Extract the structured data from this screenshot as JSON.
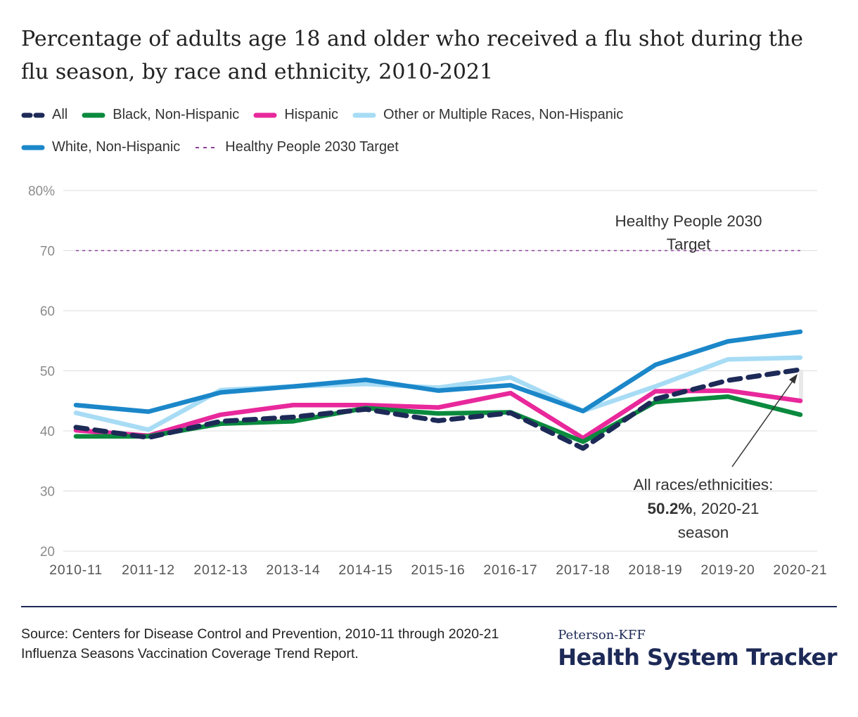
{
  "chart_data": {
    "type": "line",
    "title": "Percentage of adults age 18 and older who received a flu shot during the flu season, by race and ethnicity, 2010-2021",
    "categories": [
      "2010-11",
      "2011-12",
      "2012-13",
      "2013-14",
      "2014-15",
      "2015-16",
      "2016-17",
      "2017-18",
      "2018-19",
      "2019-20",
      "2020-21"
    ],
    "y_ticks": [
      "80%",
      "70",
      "60",
      "50",
      "40",
      "30",
      "20"
    ],
    "y_tick_values": [
      80,
      70,
      60,
      50,
      40,
      30,
      20
    ],
    "ylim": [
      20,
      80
    ],
    "grid": true,
    "legend_position": "top-left",
    "series": [
      {
        "name": "Other or Multiple Races, Non-Hispanic",
        "color": "#a8dcf5",
        "style": "solid",
        "values": [
          43.0,
          40.2,
          46.8,
          47.4,
          47.8,
          47.2,
          48.9,
          43.3,
          47.4,
          51.9,
          52.2
        ]
      },
      {
        "name": "White, Non-Hispanic",
        "color": "#1b87c9",
        "style": "solid",
        "values": [
          44.3,
          43.2,
          46.4,
          47.4,
          48.5,
          46.7,
          47.6,
          43.3,
          51.0,
          54.9,
          56.5
        ]
      },
      {
        "name": "Hispanic",
        "color": "#e8289b",
        "style": "solid",
        "values": [
          40.1,
          39.2,
          42.7,
          44.3,
          44.3,
          43.9,
          46.3,
          38.8,
          46.6,
          46.7,
          45.0
        ]
      },
      {
        "name": "Black, Non-Hispanic",
        "color": "#0a8a3e",
        "style": "solid",
        "values": [
          39.1,
          39.1,
          41.2,
          41.6,
          43.8,
          42.9,
          43.1,
          38.2,
          44.8,
          45.7,
          42.7
        ]
      },
      {
        "name": "All",
        "color": "#1d2a57",
        "style": "dashed",
        "values": [
          40.6,
          38.9,
          41.6,
          42.3,
          43.6,
          41.7,
          43.0,
          37.1,
          45.3,
          48.4,
          50.2
        ]
      }
    ],
    "target": {
      "name": "Healthy People 2030 Target",
      "value": 70,
      "color": "#8e3e9c",
      "label_line1": "Healthy People 2030",
      "label_line2": "Target"
    },
    "annotation": {
      "line1": "All races/ethnicities:",
      "bold": "50.2%",
      "rest": ", 2020-21",
      "line3": "season",
      "points_to_category": "2020-21",
      "points_to_value": 50.2
    }
  },
  "legend": {
    "row1": [
      {
        "label": "All",
        "color": "#1d2a57",
        "style": "dashed"
      },
      {
        "label": "Black, Non-Hispanic",
        "color": "#0a8a3e",
        "style": "solid"
      },
      {
        "label": "Hispanic",
        "color": "#e8289b",
        "style": "solid"
      },
      {
        "label": "Other or Multiple Races, Non-Hispanic",
        "color": "#a8dcf5",
        "style": "solid"
      }
    ],
    "row2": [
      {
        "label": "White, Non-Hispanic",
        "color": "#1b87c9",
        "style": "solid"
      },
      {
        "label": "Healthy People 2030 Target",
        "color": "#8e3e9c",
        "style": "dotted"
      }
    ]
  },
  "source": "Source: Centers for Disease Control and Prevention, 2010-11 through 2020-21 Influenza Seasons Vaccination Coverage Trend Report.",
  "brand": {
    "top": "Peterson-KFF",
    "main": "Health System Tracker"
  }
}
